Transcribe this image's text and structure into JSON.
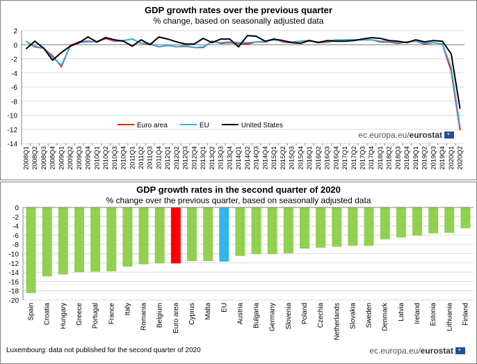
{
  "footnote": "Luxembourg: data not published for the second quarter of 2020",
  "brand": {
    "prefix": "ec.europa.eu/",
    "name": "eurostat"
  },
  "colors": {
    "euro_area": "#ff0000",
    "eu": "#33b5e5",
    "us": "#000000",
    "country_bar": "#92d050"
  },
  "chart_data": [
    {
      "type": "line",
      "title": "GDP growth rates over the previous quarter",
      "subtitle": "% change, based on seasonally adjusted data",
      "ylim": [
        -14,
        2
      ],
      "yticks": [
        2,
        0,
        -2,
        -4,
        -6,
        -8,
        -10,
        -12,
        -14
      ],
      "grid": true,
      "legend": "bottom-center",
      "x": [
        "2008Q1",
        "2008Q2",
        "2008Q3",
        "2008Q4",
        "2009Q1",
        "2009Q2",
        "2009Q3",
        "2009Q4",
        "2010Q1",
        "2010Q2",
        "2010Q3",
        "2010Q4",
        "2011Q1",
        "2011Q2",
        "2011Q3",
        "2011Q4",
        "2012Q1",
        "2012Q2",
        "2012Q3",
        "2012Q4",
        "2013Q1",
        "2013Q2",
        "2013Q3",
        "2013Q4",
        "2014Q1",
        "2014Q2",
        "2014Q3",
        "2014Q4",
        "2015Q1",
        "2015Q2",
        "2015Q3",
        "2015Q4",
        "2016Q1",
        "2016Q2",
        "2016Q3",
        "2016Q4",
        "2017Q1",
        "2017Q2",
        "2017Q3",
        "2017Q4",
        "2018Q1",
        "2018Q2",
        "2018Q3",
        "2018Q4",
        "2019Q1",
        "2019Q2",
        "2019Q3",
        "2019Q4",
        "2020Q1",
        "2020Q2"
      ],
      "series": [
        {
          "name": "Euro area",
          "color": "#ff0000",
          "values": [
            0.5,
            -0.3,
            -0.5,
            -1.6,
            -3.1,
            -0.1,
            0.4,
            0.5,
            0.4,
            0.9,
            0.5,
            0.6,
            0.8,
            0.2,
            0.1,
            -0.3,
            -0.1,
            -0.3,
            -0.2,
            -0.4,
            -0.4,
            0.5,
            0.2,
            0.3,
            0.2,
            0.1,
            0.4,
            0.4,
            0.8,
            0.4,
            0.3,
            0.5,
            0.6,
            0.3,
            0.4,
            0.6,
            0.7,
            0.7,
            0.7,
            0.7,
            0.4,
            0.4,
            0.2,
            0.4,
            0.5,
            0.1,
            0.3,
            0.1,
            -3.7,
            -12.1
          ]
        },
        {
          "name": "EU",
          "color": "#33b5e5",
          "values": [
            0.5,
            -0.2,
            -0.5,
            -1.8,
            -2.9,
            -0.2,
            0.3,
            0.4,
            0.4,
            1.0,
            0.6,
            0.6,
            0.8,
            0.2,
            0.2,
            -0.3,
            -0.1,
            -0.3,
            -0.1,
            -0.4,
            -0.3,
            0.4,
            0.3,
            0.4,
            0.3,
            0.3,
            0.4,
            0.5,
            0.7,
            0.5,
            0.4,
            0.5,
            0.5,
            0.4,
            0.5,
            0.7,
            0.7,
            0.7,
            0.7,
            0.7,
            0.5,
            0.5,
            0.3,
            0.4,
            0.5,
            0.2,
            0.3,
            0.1,
            -3.2,
            -11.7
          ]
        },
        {
          "name": "United States",
          "color": "#000000",
          "values": [
            -0.6,
            0.5,
            -0.5,
            -2.2,
            -1.1,
            -0.2,
            0.3,
            1.1,
            0.4,
            1.0,
            0.7,
            0.5,
            -0.2,
            0.7,
            0.0,
            1.1,
            0.8,
            0.4,
            0.1,
            0.1,
            0.9,
            0.3,
            0.8,
            0.8,
            -0.3,
            1.3,
            1.2,
            0.5,
            0.8,
            0.6,
            0.3,
            0.2,
            0.6,
            0.3,
            0.6,
            0.5,
            0.5,
            0.6,
            0.8,
            1.0,
            0.9,
            0.6,
            0.5,
            0.3,
            0.7,
            0.4,
            0.6,
            0.5,
            -1.3,
            -9.1
          ]
        }
      ]
    },
    {
      "type": "bar",
      "title": "GDP growth rates in the second quarter of 2020",
      "subtitle": "% change over the previous  quarter, based on seasonally adjusted data",
      "ylim": [
        -20,
        0
      ],
      "yticks": [
        0,
        -2,
        -4,
        -6,
        -8,
        -10,
        -12,
        -14,
        -16,
        -18,
        -20
      ],
      "categories": [
        "Spain",
        "Croatia",
        "Hungary",
        "Greece",
        "Portugal",
        "France",
        "Italy",
        "Romania",
        "Belgium",
        "Euro area",
        "Cyprus",
        "Malta",
        "EU",
        "Austria",
        "Bulgaria",
        "Germany",
        "Slovenia",
        "Poland",
        "Czechia",
        "Netherlands",
        "Slovakia",
        "Sweden",
        "Denmark",
        "Latvia",
        "Ireland",
        "Estonia",
        "Lithuania",
        "Finland"
      ],
      "values": [
        -18.5,
        -14.9,
        -14.5,
        -14.0,
        -13.9,
        -13.8,
        -12.8,
        -12.3,
        -12.1,
        -12.1,
        -11.6,
        -11.6,
        -11.7,
        -10.5,
        -10.1,
        -10.1,
        -9.9,
        -8.9,
        -8.7,
        -8.5,
        -8.3,
        -8.3,
        -6.9,
        -6.5,
        -6.1,
        -5.6,
        -5.5,
        -4.5
      ],
      "bar_colors": {
        "Euro area": "#ff0000",
        "EU": "#33b5e5"
      }
    }
  ]
}
